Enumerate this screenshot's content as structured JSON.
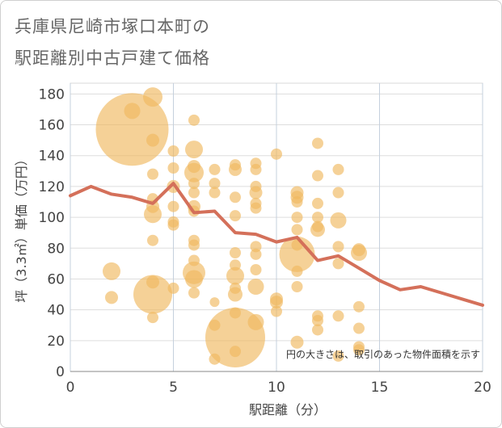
{
  "title_line1": "兵庫県尼崎市塚口本町の",
  "title_line2": "駅距離別中古戸建て価格",
  "chart_data": {
    "type": "scatter",
    "title": "兵庫県尼崎市塚口本町の駅距離別中古戸建て価格",
    "xlabel": "駅距離（分）",
    "ylabel": "坪（3.3㎡）単価（万円）",
    "xlim": [
      0,
      20
    ],
    "ylim": [
      0,
      187
    ],
    "x_ticks": [
      "0",
      "5",
      "10",
      "15",
      "20"
    ],
    "y_ticks": [
      "0",
      "20",
      "40",
      "60",
      "80",
      "100",
      "120",
      "140",
      "160",
      "180"
    ],
    "note": "円の大きさは、取引のあった物件面積を示す",
    "bubble_color": "#f0b860",
    "line_color": "#d4705a",
    "bubbles": [
      {
        "x": 3,
        "y": 157,
        "s": 45
      },
      {
        "x": 3,
        "y": 169,
        "s": 10
      },
      {
        "x": 4,
        "y": 178,
        "s": 12
      },
      {
        "x": 4,
        "y": 150,
        "s": 8
      },
      {
        "x": 4,
        "y": 128,
        "s": 7
      },
      {
        "x": 4,
        "y": 112,
        "s": 7
      },
      {
        "x": 4,
        "y": 107,
        "s": 8
      },
      {
        "x": 4,
        "y": 102,
        "s": 11
      },
      {
        "x": 4,
        "y": 85,
        "s": 7
      },
      {
        "x": 4,
        "y": 58,
        "s": 8
      },
      {
        "x": 4,
        "y": 50,
        "s": 24
      },
      {
        "x": 4,
        "y": 35,
        "s": 7
      },
      {
        "x": 2,
        "y": 65,
        "s": 11
      },
      {
        "x": 2,
        "y": 48,
        "s": 8
      },
      {
        "x": 5,
        "y": 143,
        "s": 7
      },
      {
        "x": 5,
        "y": 132,
        "s": 7
      },
      {
        "x": 5,
        "y": 120,
        "s": 8
      },
      {
        "x": 5,
        "y": 107,
        "s": 7
      },
      {
        "x": 5,
        "y": 97,
        "s": 7
      },
      {
        "x": 5,
        "y": 95,
        "s": 7
      },
      {
        "x": 5,
        "y": 54,
        "s": 7
      },
      {
        "x": 6,
        "y": 163,
        "s": 7
      },
      {
        "x": 6,
        "y": 144,
        "s": 11
      },
      {
        "x": 6,
        "y": 133,
        "s": 8
      },
      {
        "x": 6,
        "y": 129,
        "s": 12
      },
      {
        "x": 6,
        "y": 122,
        "s": 7
      },
      {
        "x": 6,
        "y": 116,
        "s": 7
      },
      {
        "x": 6,
        "y": 107,
        "s": 8
      },
      {
        "x": 6,
        "y": 104,
        "s": 7
      },
      {
        "x": 6,
        "y": 85,
        "s": 7
      },
      {
        "x": 6,
        "y": 82,
        "s": 7
      },
      {
        "x": 6,
        "y": 72,
        "s": 7
      },
      {
        "x": 6,
        "y": 64,
        "s": 14
      },
      {
        "x": 6,
        "y": 60,
        "s": 11
      },
      {
        "x": 6,
        "y": 51,
        "s": 7
      },
      {
        "x": 7,
        "y": 131,
        "s": 7
      },
      {
        "x": 7,
        "y": 122,
        "s": 7
      },
      {
        "x": 7,
        "y": 116,
        "s": 7
      },
      {
        "x": 7,
        "y": 45,
        "s": 6
      },
      {
        "x": 7,
        "y": 30,
        "s": 7
      },
      {
        "x": 7,
        "y": 8,
        "s": 7
      },
      {
        "x": 8,
        "y": 134,
        "s": 7
      },
      {
        "x": 8,
        "y": 131,
        "s": 8
      },
      {
        "x": 8,
        "y": 113,
        "s": 7
      },
      {
        "x": 8,
        "y": 101,
        "s": 7
      },
      {
        "x": 8,
        "y": 77,
        "s": 7
      },
      {
        "x": 8,
        "y": 69,
        "s": 7
      },
      {
        "x": 8,
        "y": 62,
        "s": 11
      },
      {
        "x": 8,
        "y": 54,
        "s": 7
      },
      {
        "x": 8,
        "y": 50,
        "s": 9
      },
      {
        "x": 8,
        "y": 38,
        "s": 7
      },
      {
        "x": 8,
        "y": 22,
        "s": 37
      },
      {
        "x": 8,
        "y": 13,
        "s": 7
      },
      {
        "x": 9,
        "y": 135,
        "s": 7
      },
      {
        "x": 9,
        "y": 131,
        "s": 7
      },
      {
        "x": 9,
        "y": 120,
        "s": 7
      },
      {
        "x": 9,
        "y": 116,
        "s": 8
      },
      {
        "x": 9,
        "y": 109,
        "s": 7
      },
      {
        "x": 9,
        "y": 106,
        "s": 7
      },
      {
        "x": 9,
        "y": 81,
        "s": 7
      },
      {
        "x": 9,
        "y": 76,
        "s": 7
      },
      {
        "x": 9,
        "y": 66,
        "s": 7
      },
      {
        "x": 9,
        "y": 55,
        "s": 10
      },
      {
        "x": 9,
        "y": 32,
        "s": 10
      },
      {
        "x": 10,
        "y": 141,
        "s": 7
      },
      {
        "x": 10,
        "y": 47,
        "s": 8
      },
      {
        "x": 10,
        "y": 45,
        "s": 8
      },
      {
        "x": 10,
        "y": 39,
        "s": 7
      },
      {
        "x": 11,
        "y": 116,
        "s": 8
      },
      {
        "x": 11,
        "y": 113,
        "s": 8
      },
      {
        "x": 11,
        "y": 110,
        "s": 7
      },
      {
        "x": 11,
        "y": 100,
        "s": 7
      },
      {
        "x": 11,
        "y": 92,
        "s": 7
      },
      {
        "x": 11,
        "y": 82,
        "s": 7
      },
      {
        "x": 11,
        "y": 76,
        "s": 22
      },
      {
        "x": 11,
        "y": 65,
        "s": 7
      },
      {
        "x": 11,
        "y": 55,
        "s": 7
      },
      {
        "x": 11,
        "y": 19,
        "s": 8
      },
      {
        "x": 12,
        "y": 148,
        "s": 7
      },
      {
        "x": 12,
        "y": 127,
        "s": 7
      },
      {
        "x": 12,
        "y": 109,
        "s": 7
      },
      {
        "x": 12,
        "y": 100,
        "s": 7
      },
      {
        "x": 12,
        "y": 94,
        "s": 7
      },
      {
        "x": 12,
        "y": 92,
        "s": 9
      },
      {
        "x": 12,
        "y": 36,
        "s": 7
      },
      {
        "x": 12,
        "y": 33,
        "s": 7
      },
      {
        "x": 12,
        "y": 27,
        "s": 7
      },
      {
        "x": 13,
        "y": 131,
        "s": 7
      },
      {
        "x": 13,
        "y": 116,
        "s": 7
      },
      {
        "x": 13,
        "y": 98,
        "s": 10
      },
      {
        "x": 13,
        "y": 81,
        "s": 7
      },
      {
        "x": 13,
        "y": 70,
        "s": 7
      },
      {
        "x": 13,
        "y": 36,
        "s": 7
      },
      {
        "x": 13,
        "y": 10,
        "s": 7
      },
      {
        "x": 14,
        "y": 79,
        "s": 8
      },
      {
        "x": 14,
        "y": 77,
        "s": 10
      },
      {
        "x": 14,
        "y": 42,
        "s": 7
      },
      {
        "x": 14,
        "y": 28,
        "s": 7
      },
      {
        "x": 14,
        "y": 16,
        "s": 7
      },
      {
        "x": 14,
        "y": 14,
        "s": 7
      }
    ],
    "line": {
      "x": [
        0,
        1,
        2,
        3,
        4,
        5,
        6,
        7,
        8,
        9,
        10,
        11,
        12,
        13,
        14,
        15,
        16,
        17,
        18,
        19,
        20
      ],
      "y": [
        114,
        120,
        115,
        113,
        109,
        122,
        103,
        104,
        90,
        89,
        84,
        87,
        72,
        75,
        67,
        59,
        53,
        55,
        51,
        47,
        43
      ]
    }
  }
}
